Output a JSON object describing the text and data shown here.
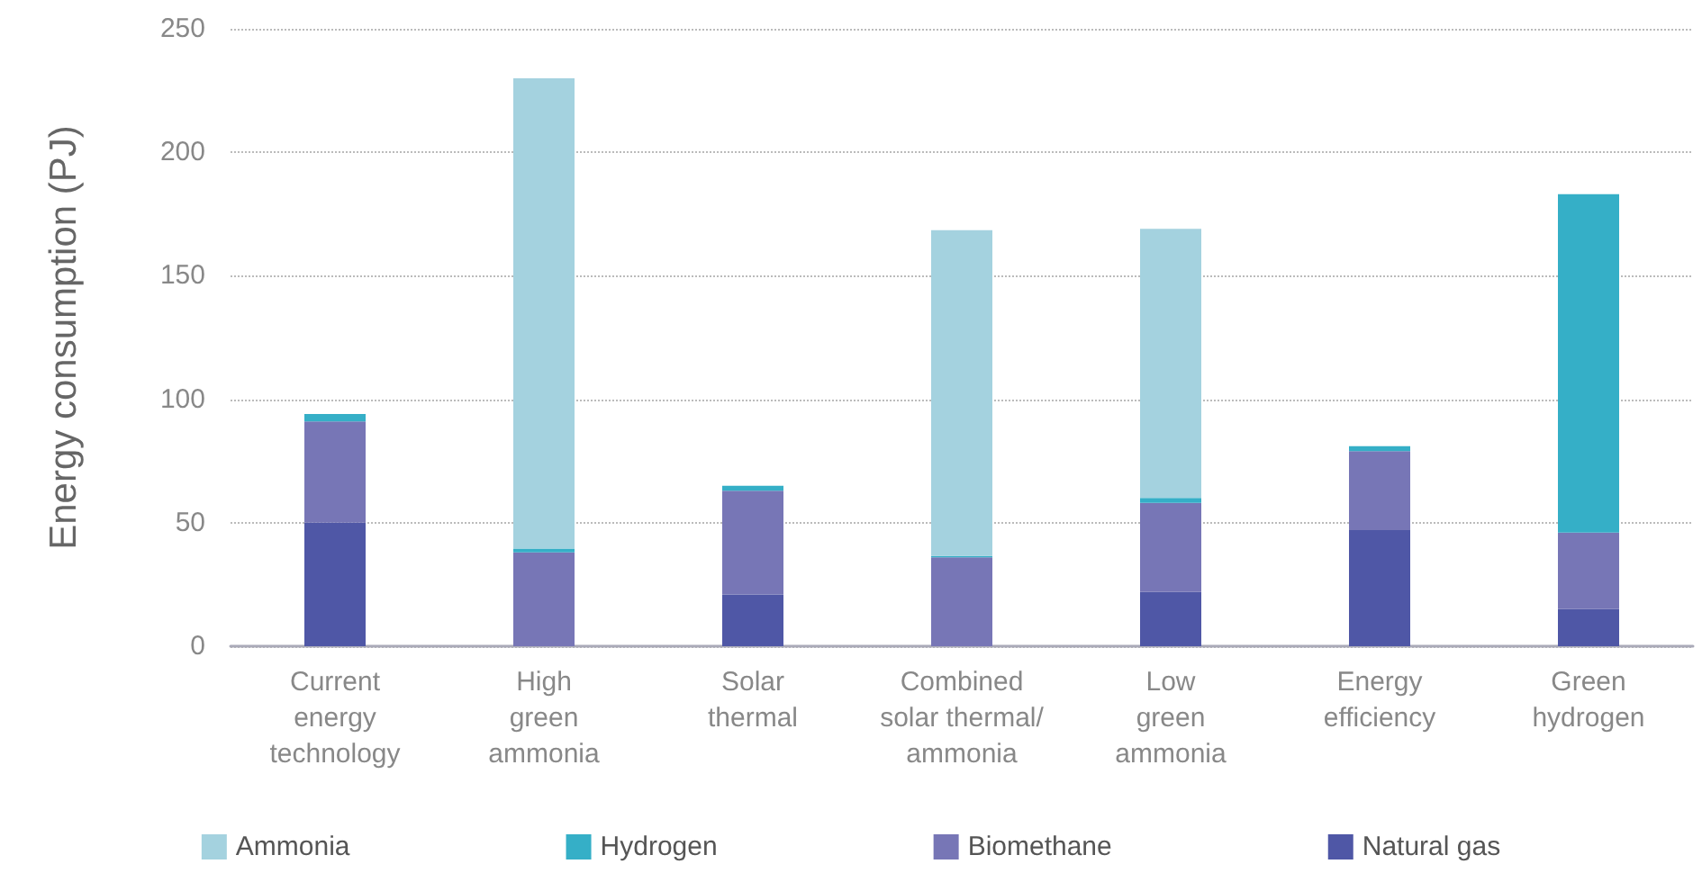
{
  "chart_data": {
    "type": "bar",
    "stacked": true,
    "ylabel": "Energy consumption (PJ)",
    "categories": [
      "Current\nenergy\ntechnology",
      "High\ngreen\nammonia",
      "Solar\nthermal",
      "Combined\nsolar thermal/\nammonia",
      "Low\ngreen\nammonia",
      "Energy\nefficiency",
      "Green\nhydrogen"
    ],
    "series": [
      {
        "name": "Natural gas",
        "color": "#4f57a6",
        "values": [
          50,
          0,
          21,
          0,
          22,
          47,
          15
        ]
      },
      {
        "name": "Biomethane",
        "color": "#7776b6",
        "values": [
          41,
          38,
          42,
          36,
          36,
          32,
          31
        ]
      },
      {
        "name": "Hydrogen",
        "color": "#35afc7",
        "values": [
          3,
          1.5,
          2,
          0.5,
          2,
          2,
          137
        ]
      },
      {
        "name": "Ammonia",
        "color": "#a4d2df",
        "values": [
          0,
          190.5,
          0,
          132,
          109,
          0,
          0
        ]
      }
    ],
    "ylim": [
      0,
      250
    ],
    "yticks": [
      0,
      50,
      100,
      150,
      200,
      250
    ],
    "grid": "y",
    "legend": "bottom"
  }
}
